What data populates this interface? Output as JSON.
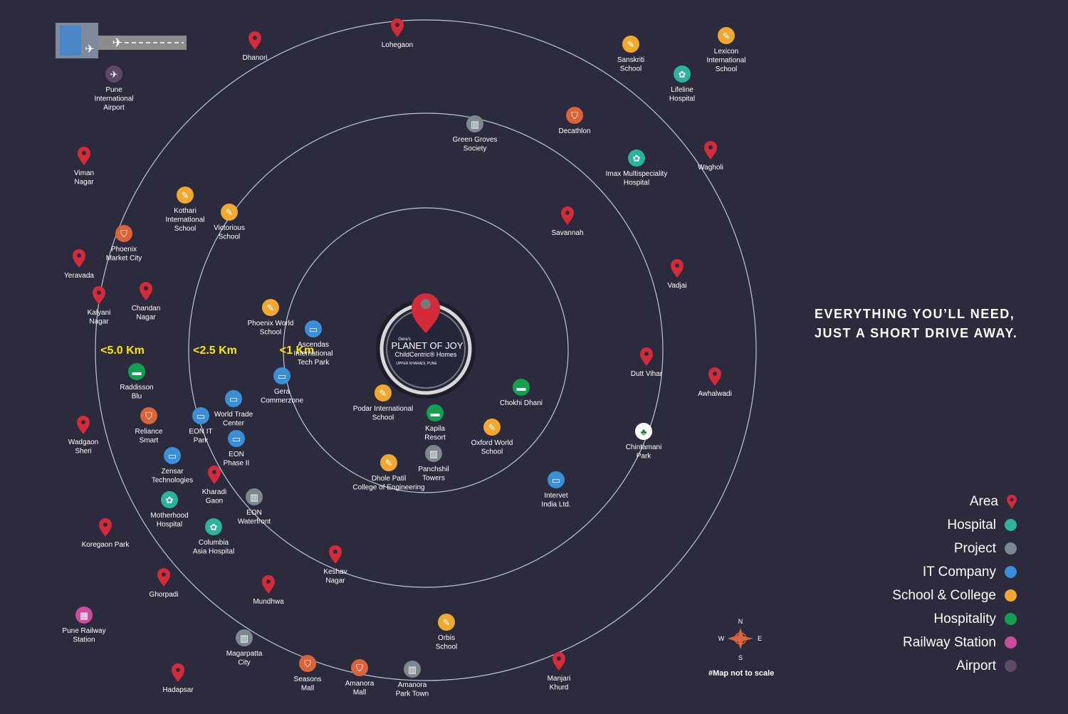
{
  "tagline": [
    "EVERYTHING YOU’LL NEED,",
    "JUST A SHORT DRIVE AWAY."
  ],
  "note": "#Map not to scale",
  "compass": {
    "n": "N",
    "s": "S",
    "e": "E",
    "w": "W"
  },
  "center": {
    "brand": "Gera's",
    "name": "PLANET OF JOY",
    "sub": "ChildCentric® Homes",
    "loc": "UPPER KHARADI, PUNE"
  },
  "rings": [
    "<1 Km",
    "<2.5 Km",
    "<5.0 Km"
  ],
  "colors": {
    "area": "#d42b3a",
    "hospital": "#2bb39c",
    "project": "#7d8790",
    "it": "#3a8fd6",
    "school": "#f0a830",
    "hospitality": "#12a050",
    "railway": "#cc4c9c",
    "airport": "#5e4a68",
    "shopping": "#d9643c",
    "park": "#ffffff",
    "bg": "#2b2b3d"
  },
  "legend": [
    {
      "label": "Area",
      "type": "area"
    },
    {
      "label": "Hospital",
      "type": "hospital"
    },
    {
      "label": "Project",
      "type": "project"
    },
    {
      "label": "IT Company",
      "type": "it"
    },
    {
      "label": "School & College",
      "type": "school"
    },
    {
      "label": "Hospitality",
      "type": "hospitality"
    },
    {
      "label": "Railway Station",
      "type": "railway"
    },
    {
      "label": "Airport",
      "type": "airport"
    }
  ],
  "places": [
    {
      "name": [
        "Lohegaon"
      ],
      "type": "area"
    },
    {
      "name": [
        "Dhanori"
      ],
      "type": "area"
    },
    {
      "name": [
        "Pune",
        "International",
        "Airport"
      ],
      "type": "airport"
    },
    {
      "name": [
        "Sanskriti",
        "School"
      ],
      "type": "school"
    },
    {
      "name": [
        "Lexicon",
        "International",
        "School"
      ],
      "type": "school"
    },
    {
      "name": [
        "Lifeline",
        "Hospital"
      ],
      "type": "hospital"
    },
    {
      "name": [
        "Green Groves",
        "Society"
      ],
      "type": "project"
    },
    {
      "name": [
        "Decathlon"
      ],
      "type": "shopping"
    },
    {
      "name": [
        "Imax Multispeciality",
        "Hospital"
      ],
      "type": "hospital"
    },
    {
      "name": [
        "Wagholi"
      ],
      "type": "area"
    },
    {
      "name": [
        "Viman",
        "Nagar"
      ],
      "type": "area"
    },
    {
      "name": [
        "Kothari",
        "International",
        "School"
      ],
      "type": "school"
    },
    {
      "name": [
        "Victorious",
        "School"
      ],
      "type": "school"
    },
    {
      "name": [
        "Savannah"
      ],
      "type": "area"
    },
    {
      "name": [
        "Phoenix",
        "Market City"
      ],
      "type": "shopping"
    },
    {
      "name": [
        "Yeravada"
      ],
      "type": "area"
    },
    {
      "name": [
        "Vadjai"
      ],
      "type": "area"
    },
    {
      "name": [
        "Kalyani",
        "Nagar"
      ],
      "type": "area"
    },
    {
      "name": [
        "Chandan",
        "Nagar"
      ],
      "type": "area"
    },
    {
      "name": [
        "Phoenix World",
        "School"
      ],
      "type": "school"
    },
    {
      "name": [
        "Ascendas",
        "International",
        "Tech Park"
      ],
      "type": "it"
    },
    {
      "name": [
        "Dutt Vihar"
      ],
      "type": "area"
    },
    {
      "name": [
        "Awhalwadi"
      ],
      "type": "area"
    },
    {
      "name": [
        "Raddisson",
        "Blu"
      ],
      "type": "hospitality"
    },
    {
      "name": [
        "Gera",
        "Commerzone"
      ],
      "type": "it"
    },
    {
      "name": [
        "Podar International",
        "School"
      ],
      "type": "school"
    },
    {
      "name": [
        "Chokhi Dhani"
      ],
      "type": "hospitality"
    },
    {
      "name": [
        "Chintamani",
        "Park"
      ],
      "type": "park"
    },
    {
      "name": [
        "Reliance",
        "Smart"
      ],
      "type": "shopping"
    },
    {
      "name": [
        "World Trade",
        "Center"
      ],
      "type": "it"
    },
    {
      "name": [
        "EON IT",
        "Park"
      ],
      "type": "it"
    },
    {
      "name": [
        "Kapila",
        "Resort"
      ],
      "type": "hospitality"
    },
    {
      "name": [
        "Oxford World",
        "School"
      ],
      "type": "school"
    },
    {
      "name": [
        "Wadgaon",
        "Sheri"
      ],
      "type": "area"
    },
    {
      "name": [
        "EON",
        "Phase II"
      ],
      "type": "it"
    },
    {
      "name": [
        "Zensar",
        "Technologies"
      ],
      "type": "it"
    },
    {
      "name": [
        "Panchshil",
        "Towers"
      ],
      "type": "project"
    },
    {
      "name": [
        "Dhole Patil",
        "College of Engineering"
      ],
      "type": "school"
    },
    {
      "name": [
        "Kharadi",
        "Gaon"
      ],
      "type": "area"
    },
    {
      "name": [
        "Intervet",
        "India Ltd."
      ],
      "type": "it"
    },
    {
      "name": [
        "Motherhood",
        "Hospital"
      ],
      "type": "hospital"
    },
    {
      "name": [
        "EON",
        "Waterfront"
      ],
      "type": "project"
    },
    {
      "name": [
        "Columbia",
        "Asia Hospital"
      ],
      "type": "hospital"
    },
    {
      "name": [
        "Koregaon Park"
      ],
      "type": "area"
    },
    {
      "name": [
        "Keshav",
        "Nagar"
      ],
      "type": "area"
    },
    {
      "name": [
        "Ghorpadi"
      ],
      "type": "area"
    },
    {
      "name": [
        "Mundhwa"
      ],
      "type": "area"
    },
    {
      "name": [
        "Pune Railway",
        "Station"
      ],
      "type": "railway"
    },
    {
      "name": [
        "Orbis",
        "School"
      ],
      "type": "school"
    },
    {
      "name": [
        "Magarpatta",
        "City"
      ],
      "type": "project"
    },
    {
      "name": [
        "Seasons",
        "Mall"
      ],
      "type": "shopping"
    },
    {
      "name": [
        "Amanora",
        "Mall"
      ],
      "type": "shopping"
    },
    {
      "name": [
        "Amanora",
        "Park Town"
      ],
      "type": "project"
    },
    {
      "name": [
        "Manjari",
        "Khurd"
      ],
      "type": "area"
    },
    {
      "name": [
        "Hadapsar"
      ],
      "type": "area"
    }
  ]
}
